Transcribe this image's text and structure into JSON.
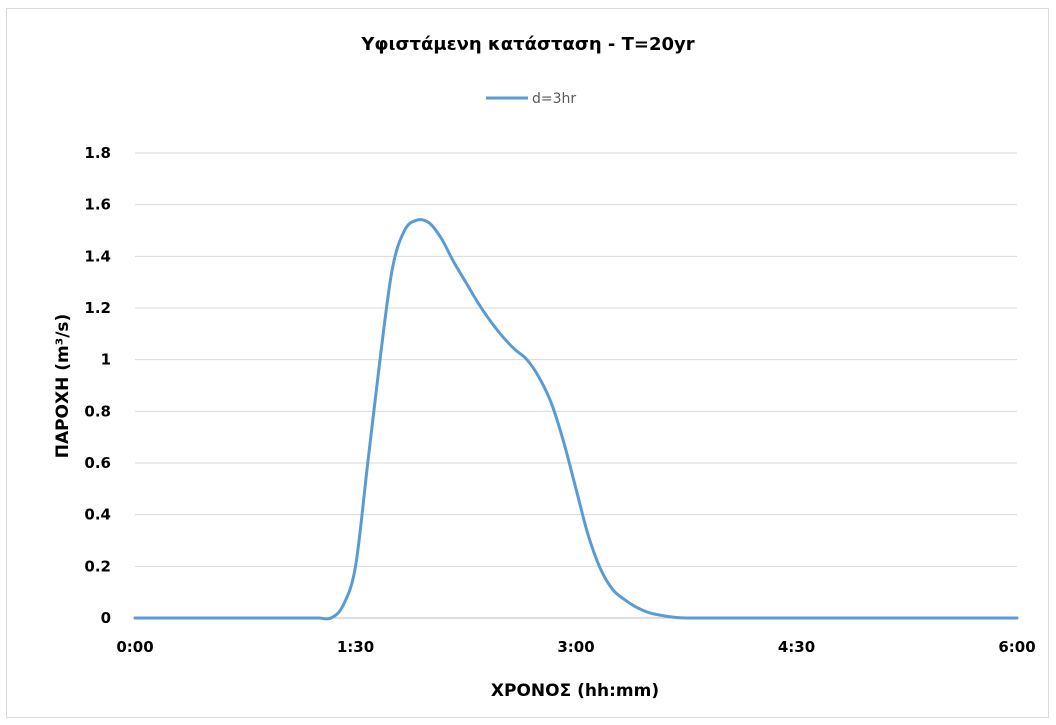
{
  "chart_data": {
    "type": "line",
    "title": "Υφιστάμενη κατάσταση - T=20yr",
    "xlabel": "ΧΡΟΝΟΣ (hh:mm)",
    "ylabel": "ΠΑΡΟΧΗ (m³/s)",
    "ylim": [
      0,
      1.8
    ],
    "yticks": [
      0,
      0.2,
      0.4,
      0.6,
      0.8,
      1,
      1.2,
      1.4,
      1.6,
      1.8
    ],
    "xlim_minutes": [
      0,
      360
    ],
    "xticks": [
      "0:00",
      "1:30",
      "3:00",
      "4:30",
      "6:00"
    ],
    "grid": true,
    "legend_position": "top",
    "series": [
      {
        "name": "d=3hr",
        "color": "#5b9bd5",
        "x_minutes": [
          0,
          20,
          40,
          60,
          70,
          75,
          80,
          85,
          90,
          95,
          100,
          105,
          110,
          115,
          120,
          125,
          130,
          135,
          140,
          145,
          150,
          155,
          160,
          165,
          170,
          175,
          180,
          185,
          190,
          195,
          200,
          205,
          210,
          215,
          220,
          225,
          230,
          240,
          250,
          260,
          270,
          300,
          330,
          360
        ],
        "values": [
          0,
          0,
          0,
          0,
          0,
          0,
          0,
          0.05,
          0.2,
          0.6,
          1.0,
          1.35,
          1.5,
          1.54,
          1.53,
          1.47,
          1.38,
          1.3,
          1.22,
          1.15,
          1.09,
          1.04,
          1.0,
          0.93,
          0.83,
          0.68,
          0.5,
          0.32,
          0.19,
          0.11,
          0.07,
          0.04,
          0.02,
          0.01,
          0.003,
          0,
          0,
          0,
          0,
          0,
          0,
          0,
          0,
          0
        ]
      }
    ]
  }
}
